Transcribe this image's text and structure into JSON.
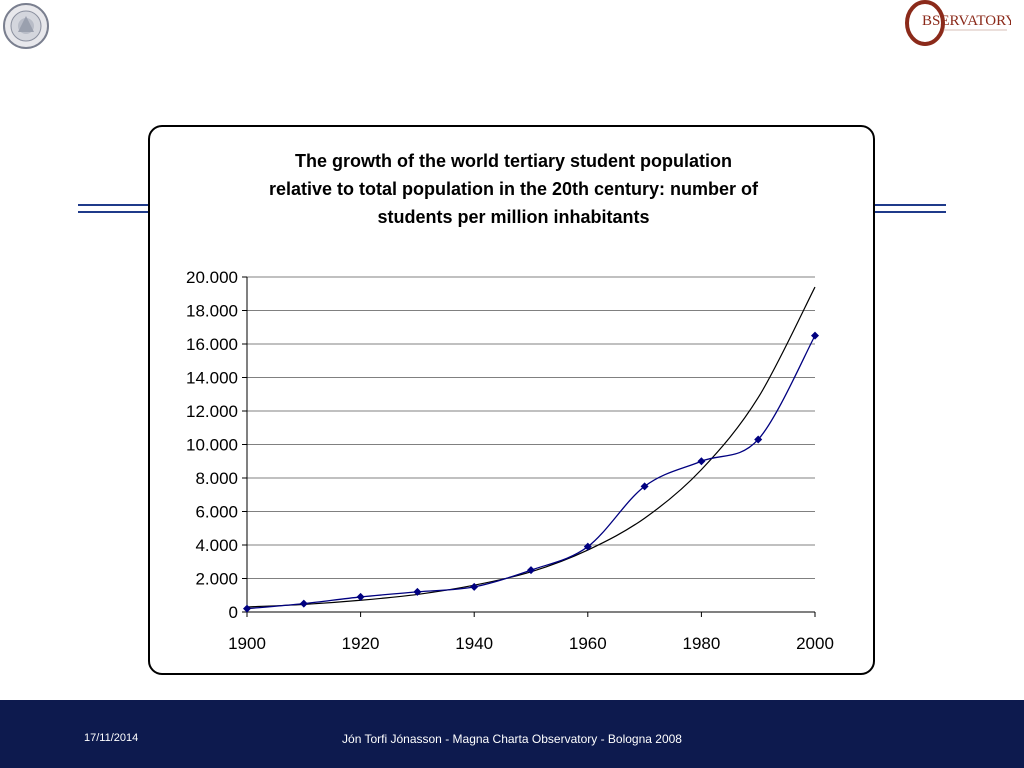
{
  "chart_data": {
    "type": "line",
    "title_lines": [
      "The growth of the world tertiary  student population",
      "relative to total population in the 20th century: number of",
      "students per million inhabitants"
    ],
    "xlabel": "",
    "ylabel": "",
    "x_ticks": [
      "1900",
      "1920",
      "1940",
      "1960",
      "1980",
      "2000"
    ],
    "y_ticks": [
      "0",
      "2.000",
      "4.000",
      "6.000",
      "8.000",
      "10.000",
      "12.000",
      "14.000",
      "16.000",
      "18.000",
      "20.000"
    ],
    "xlim": [
      1900,
      2000
    ],
    "ylim": [
      0,
      20000
    ],
    "grid": "horizontal",
    "legend": "none",
    "series": [
      {
        "color": "#000080",
        "marker": "diamond",
        "x": [
          1900,
          1910,
          1920,
          1930,
          1940,
          1950,
          1960,
          1970,
          1980,
          1990,
          2000
        ],
        "y": [
          200,
          500,
          900,
          1200,
          1500,
          2500,
          3900,
          7500,
          9000,
          10300,
          16500
        ]
      },
      {
        "color": "#000000",
        "marker": "none",
        "trend": "exponential fit",
        "x": [
          1900,
          1910,
          1920,
          1930,
          1940,
          1950,
          1960,
          1970,
          1980,
          1990,
          2000
        ],
        "y": [
          300,
          450,
          700,
          1050,
          1600,
          2400,
          3700,
          5600,
          8500,
          12800,
          19400
        ]
      }
    ]
  },
  "footer": {
    "date": "17/11/2014",
    "credit": "Jón Torfi Jónasson - Magna Charta Observatory - Bologna 2008"
  },
  "logos": {
    "left_seal": "university-seal",
    "right_logo": "observatory-logo",
    "right_logo_text": "BSERVATORY"
  },
  "colors": {
    "footer_bg": "#0d1a4e",
    "rule": "#1f3a8a",
    "series_marker": "#000080"
  }
}
